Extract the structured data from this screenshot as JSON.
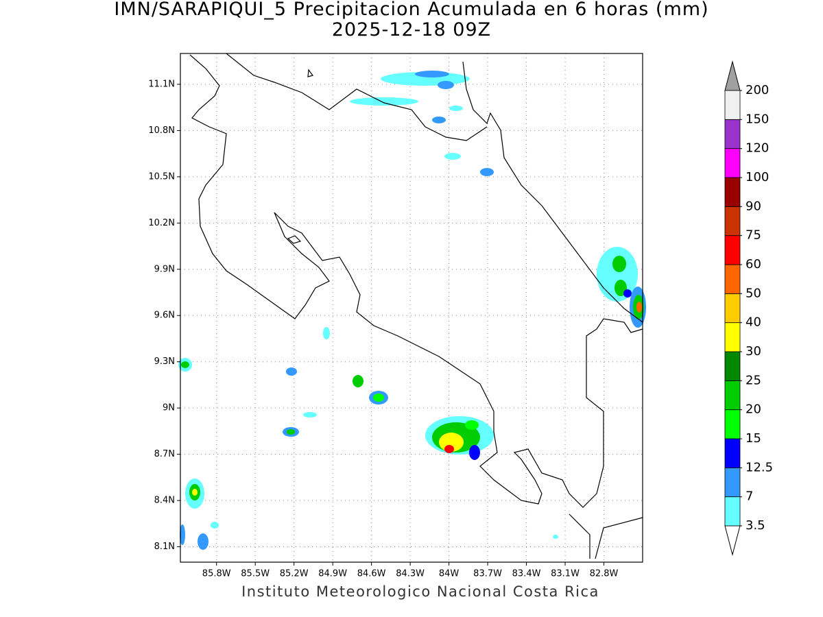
{
  "header": {
    "title": "IMN/SARAPIQUI_5 Precipitacion Acumulada en 6 horas (mm)",
    "subtitle": "2025-12-18 09Z"
  },
  "map": {
    "lonlim": [
      -86.08,
      -82.5
    ],
    "latlim": [
      8.0,
      11.3
    ],
    "grid": true,
    "xticks": [
      {
        "value": -85.8,
        "label": "85.8W"
      },
      {
        "value": -85.5,
        "label": "85.5W"
      },
      {
        "value": -85.2,
        "label": "85.2W"
      },
      {
        "value": -84.9,
        "label": "84.9W"
      },
      {
        "value": -84.6,
        "label": "84.6W"
      },
      {
        "value": -84.3,
        "label": "84.3W"
      },
      {
        "value": -84.0,
        "label": "84W"
      },
      {
        "value": -83.7,
        "label": "83.7W"
      },
      {
        "value": -83.4,
        "label": "83.4W"
      },
      {
        "value": -83.1,
        "label": "83.1W"
      },
      {
        "value": -82.8,
        "label": "82.8W"
      }
    ],
    "yticks": [
      {
        "value": 8.1,
        "label": "8.1N"
      },
      {
        "value": 8.4,
        "label": "8.4N"
      },
      {
        "value": 8.7,
        "label": "8.7N"
      },
      {
        "value": 9.0,
        "label": "9N"
      },
      {
        "value": 9.3,
        "label": "9.3N"
      },
      {
        "value": 9.6,
        "label": "9.6N"
      },
      {
        "value": 9.9,
        "label": "9.9N"
      },
      {
        "value": 10.2,
        "label": "10.2N"
      },
      {
        "value": 10.5,
        "label": "10.5N"
      },
      {
        "value": 10.8,
        "label": "10.8N"
      },
      {
        "value": 11.1,
        "label": "11.1N"
      }
    ]
  },
  "colorbar": {
    "levels": [
      3.5,
      7,
      12.5,
      15,
      20,
      25,
      30,
      40,
      50,
      60,
      75,
      90,
      100,
      120,
      150,
      200
    ],
    "colors": [
      "#66ffff",
      "#3399ff",
      "#0000ff",
      "#00ff00",
      "#00cc00",
      "#008800",
      "#ffff00",
      "#ffcc00",
      "#ff6600",
      "#ff0000",
      "#cc3300",
      "#990000",
      "#ff00ff",
      "#9933cc",
      "#f0f0f0"
    ],
    "under_color": "#ffffff",
    "over_color": "#a0a0a0"
  },
  "footer": "Instituto Meteorologico Nacional Costa Rica"
}
